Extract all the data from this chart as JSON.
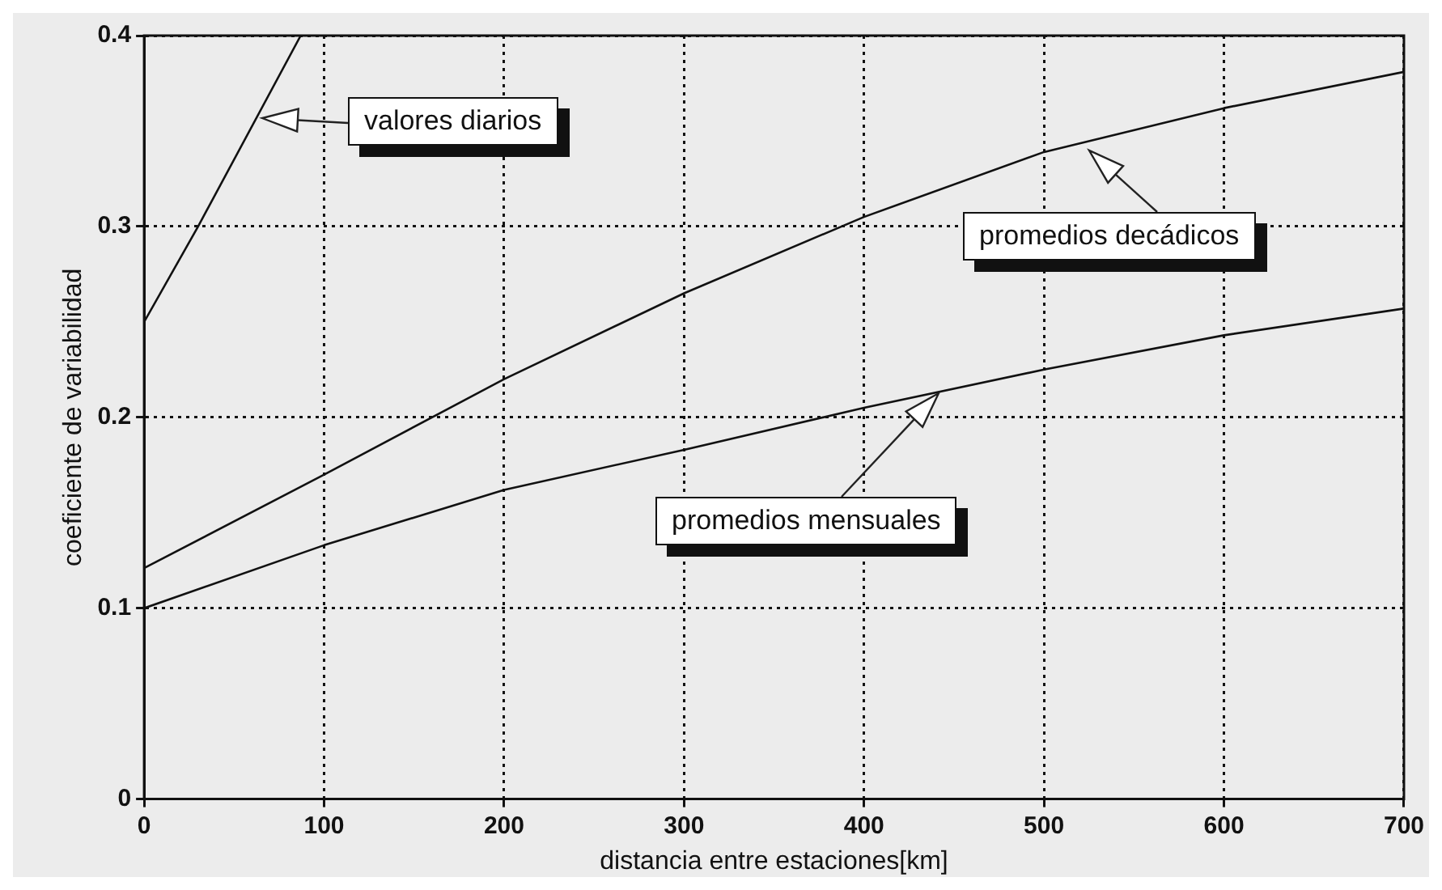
{
  "chart_data": {
    "type": "line",
    "xlabel": "distancia entre estaciones[km]",
    "ylabel": "coeficiente de variabilidad",
    "xlim": [
      0,
      700
    ],
    "xticks": [
      0,
      100,
      200,
      300,
      400,
      500,
      600,
      700
    ],
    "ylim": [
      0,
      0.4
    ],
    "yticks": [
      0,
      0.1,
      0.2,
      0.3,
      0.4
    ],
    "grid": true,
    "legend": false,
    "marker": "none",
    "line_style": "solid",
    "series": [
      {
        "color": "#111111",
        "x": [
          0,
          30,
          87
        ],
        "values": [
          0.25,
          0.3,
          0.4
        ]
      },
      {
        "color": "#111111",
        "x": [
          0,
          100,
          200,
          300,
          400,
          500,
          600,
          700
        ],
        "values": [
          0.121,
          0.17,
          0.22,
          0.265,
          0.305,
          0.339,
          0.362,
          0.381
        ]
      },
      {
        "color": "#111111",
        "x": [
          0,
          100,
          200,
          300,
          400,
          500,
          600,
          700
        ],
        "values": [
          0.1,
          0.133,
          0.162,
          0.183,
          0.205,
          0.225,
          0.243,
          0.257
        ]
      }
    ],
    "annotations": [
      "valores diarios",
      "promedios decádicos",
      "promedios mensuales"
    ]
  }
}
